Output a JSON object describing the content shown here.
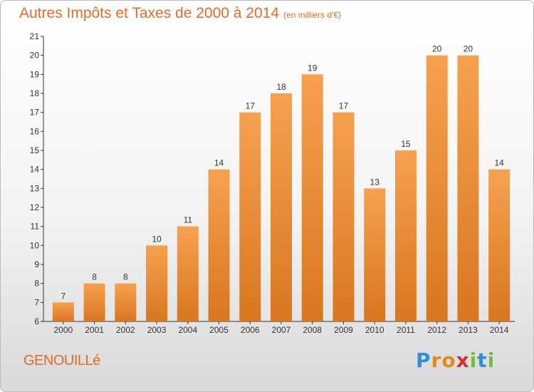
{
  "title": "Autres Impôts et Taxes de 2000 à 2014",
  "subtitle": "(en milliers d'€)",
  "commune": "GENOUILLé",
  "logo": {
    "letters": [
      "P",
      "r",
      "o",
      "x",
      "i",
      "t",
      "i"
    ],
    "colors": [
      "#2e8fd6",
      "#e08a1e",
      "#e08a1e",
      "#d62f2f",
      "#6fbf3a",
      "#2e8fd6",
      "#6fbf3a"
    ]
  },
  "colors": {
    "bar_light": "#f6a14f",
    "bar_dark": "#d9761f",
    "text": "#e06c2a",
    "axis": "#333333"
  },
  "chart_data": {
    "type": "bar",
    "categories": [
      "2000",
      "2001",
      "2002",
      "2003",
      "2004",
      "2005",
      "2006",
      "2007",
      "2008",
      "2009",
      "2010",
      "2011",
      "2012",
      "2013",
      "2014"
    ],
    "values": [
      7,
      8,
      8,
      10,
      11,
      14,
      17,
      18,
      19,
      17,
      13,
      15,
      20,
      20,
      14
    ],
    "ylim": [
      6,
      21
    ],
    "yticks": [
      6,
      7,
      8,
      9,
      10,
      11,
      12,
      13,
      14,
      15,
      16,
      17,
      18,
      19,
      20,
      21
    ],
    "grid": false,
    "data_labels": true
  }
}
